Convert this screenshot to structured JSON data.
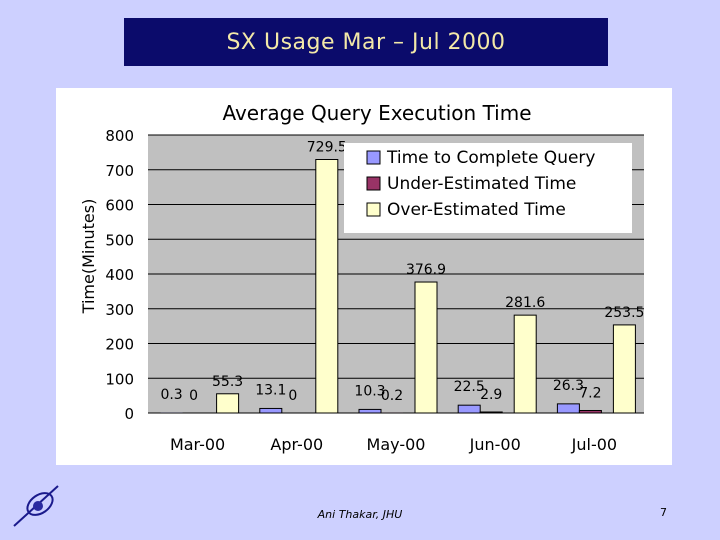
{
  "slide": {
    "title": "SX Usage Mar – Jul 2000",
    "footer": "Ani Thakar, JHU",
    "page_number": "7"
  },
  "chart_data": {
    "type": "bar",
    "title": "Average Query Execution Time",
    "xlabel": "",
    "ylabel": "Time(Minutes)",
    "ylim": [
      0,
      800
    ],
    "yticks": [
      0,
      100,
      200,
      300,
      400,
      500,
      600,
      700,
      800
    ],
    "categories": [
      "Mar-00",
      "Apr-00",
      "May-00",
      "Jun-00",
      "Jul-00"
    ],
    "grid": true,
    "legend_position": "top-right",
    "series": [
      {
        "name": "Time to Complete Query",
        "color": "#9999ff",
        "values": [
          0.3,
          13.1,
          10.3,
          22.5,
          26.3
        ],
        "labels": [
          "0.3",
          "13.1",
          "10.3",
          "22.5",
          "26.3"
        ]
      },
      {
        "name": "Under-Estimated Time",
        "color": "#993366",
        "values": [
          0,
          0,
          0.2,
          2.9,
          7.2
        ],
        "labels": [
          "0",
          "0",
          "0.2",
          "2.9",
          "7.2"
        ]
      },
      {
        "name": "Over-Estimated Time",
        "color": "#ffffcc",
        "values": [
          55.3,
          729.5,
          376.9,
          281.6,
          253.5
        ],
        "labels": [
          "55.3",
          "729.5",
          "376.9",
          "281.6",
          "253.5"
        ]
      }
    ]
  }
}
